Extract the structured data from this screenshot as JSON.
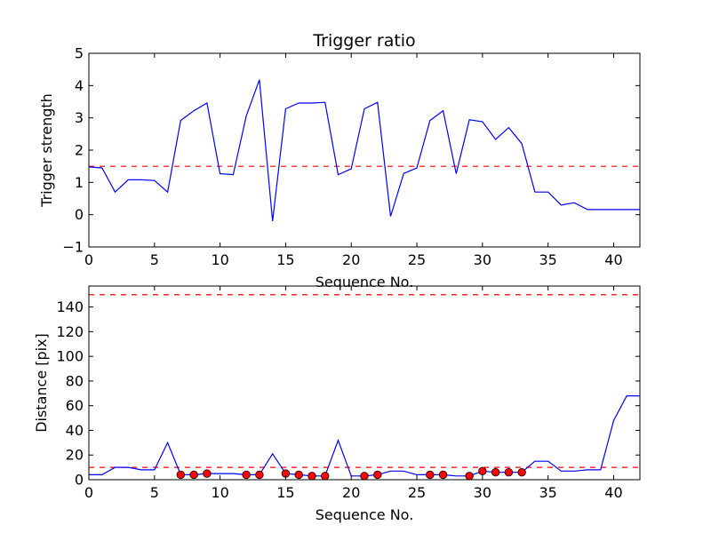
{
  "chart_data": [
    {
      "type": "line",
      "title": "Trigger ratio",
      "xlabel": "Sequence No.",
      "ylabel": "Trigger strength",
      "xlim": [
        0,
        42
      ],
      "ylim": [
        -1,
        5
      ],
      "xticks": [
        0,
        5,
        10,
        15,
        20,
        25,
        30,
        35,
        40
      ],
      "yticks": [
        -1,
        0,
        1,
        2,
        3,
        4,
        5
      ],
      "threshold": {
        "value": 1.5,
        "style": "dashed",
        "color": "#ff0000"
      },
      "series": [
        {
          "color": "#0000ff",
          "x": [
            0,
            1,
            2,
            3,
            4,
            5,
            6,
            7,
            8,
            9,
            10,
            11,
            12,
            13,
            14,
            15,
            16,
            17,
            18,
            19,
            20,
            21,
            22,
            23,
            24,
            25,
            26,
            27,
            28,
            29,
            30,
            31,
            32,
            33,
            34,
            35,
            36,
            37,
            38,
            39,
            40,
            41,
            42
          ],
          "values": [
            1.48,
            1.45,
            0.7,
            1.08,
            1.08,
            1.06,
            0.7,
            2.92,
            3.22,
            3.46,
            1.27,
            1.24,
            3.06,
            4.18,
            -0.2,
            3.28,
            3.46,
            3.46,
            3.48,
            1.24,
            1.42,
            3.28,
            3.48,
            -0.05,
            1.28,
            1.45,
            2.92,
            3.22,
            1.27,
            2.94,
            2.88,
            2.33,
            2.7,
            2.2,
            0.7,
            0.7,
            0.3,
            0.37,
            0.16,
            0.16,
            0.16,
            0.16,
            0.16
          ]
        }
      ]
    },
    {
      "type": "line",
      "title": "",
      "xlabel": "Sequence No.",
      "ylabel": "Distance [pix]",
      "xlim": [
        0,
        42
      ],
      "ylim": [
        0,
        157
      ],
      "xticks": [
        0,
        5,
        10,
        15,
        20,
        25,
        30,
        35,
        40
      ],
      "yticks": [
        0,
        20,
        40,
        60,
        80,
        100,
        120,
        140
      ],
      "thresholds": [
        {
          "value": 10,
          "style": "dashed",
          "color": "#ff0000"
        },
        {
          "value": 150,
          "style": "dashed",
          "color": "#ff0000"
        }
      ],
      "series": [
        {
          "color": "#0000ff",
          "x": [
            0,
            1,
            2,
            3,
            4,
            5,
            6,
            7,
            8,
            9,
            10,
            11,
            12,
            13,
            14,
            15,
            16,
            17,
            18,
            19,
            20,
            21,
            22,
            23,
            24,
            25,
            26,
            27,
            28,
            29,
            30,
            31,
            32,
            33,
            34,
            35,
            36,
            37,
            38,
            39,
            40,
            41,
            42
          ],
          "values": [
            4,
            4,
            10,
            10,
            8,
            8,
            30,
            4,
            4,
            5,
            5,
            5,
            4,
            4,
            21,
            5,
            4,
            3,
            3,
            32,
            3,
            3,
            4,
            7,
            7,
            4,
            4,
            4,
            3,
            3,
            7,
            6,
            6,
            6,
            15,
            15,
            7,
            7,
            8,
            8,
            48,
            68,
            68
          ]
        }
      ],
      "markers": {
        "color": "#ff0000",
        "x": [
          7,
          8,
          9,
          12,
          13,
          15,
          16,
          17,
          18,
          21,
          22,
          26,
          27,
          29,
          30,
          31,
          32,
          33
        ],
        "values": [
          4,
          4,
          5,
          4,
          4,
          5,
          4,
          3,
          3,
          3,
          4,
          4,
          4,
          3,
          7,
          6,
          6,
          6
        ]
      }
    }
  ]
}
